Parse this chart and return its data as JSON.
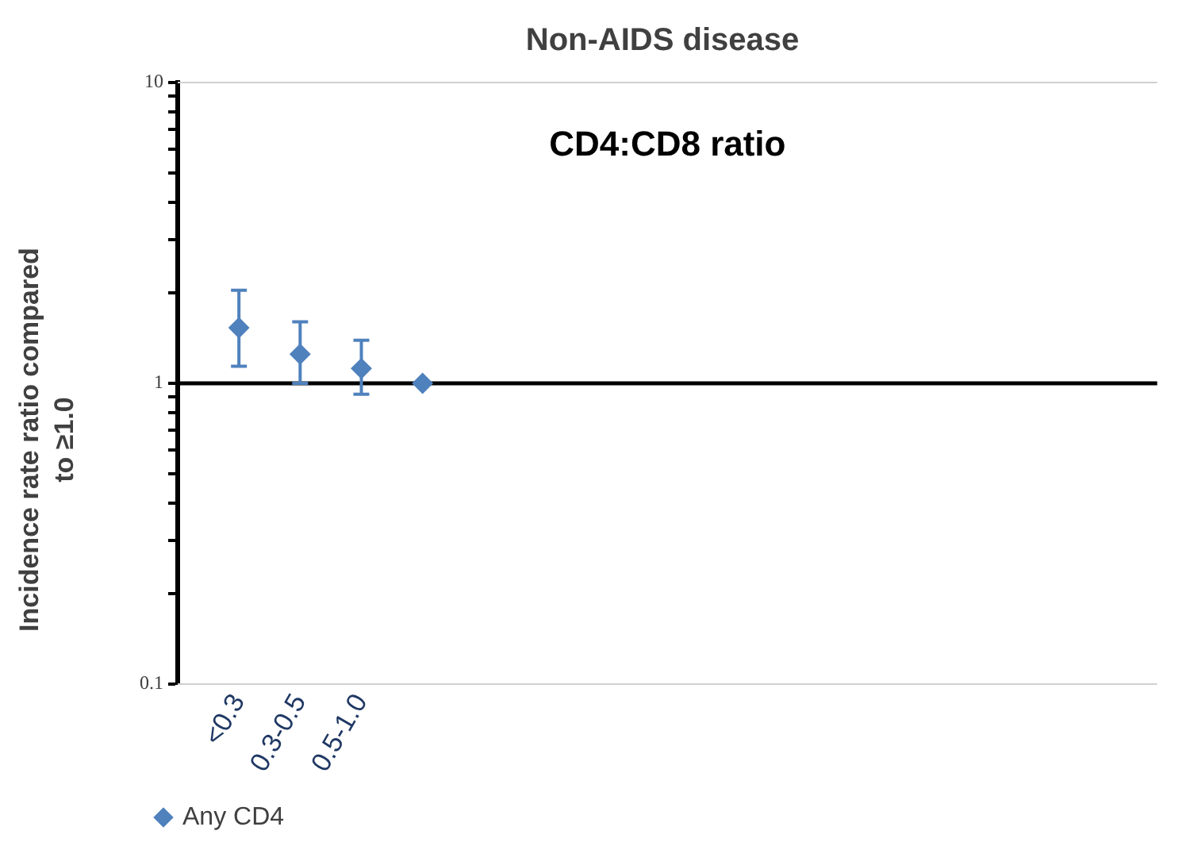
{
  "chart_data": {
    "type": "scatter",
    "title": "Non-AIDS disease",
    "ylabel": "Incidence rate ratio compared to ≥1.0",
    "annotations": [
      "CD4:CD8 ratio"
    ],
    "categories": [
      null,
      "<0.3",
      "0.3-0.5",
      "0.5-1.0",
      null,
      null,
      null,
      null,
      null,
      null,
      null,
      null,
      null,
      null,
      null,
      null,
      null
    ],
    "series": [
      {
        "name": "Any CD4",
        "color": "#4f81bd",
        "values": [
          null,
          1.53,
          1.25,
          1.12,
          1.0,
          null,
          null,
          null,
          null,
          null,
          null,
          null,
          null,
          null,
          null,
          null,
          null
        ],
        "errors": [
          null,
          [
            1.14,
            2.04
          ],
          [
            1.0,
            1.6
          ],
          [
            0.92,
            1.39
          ],
          null,
          null,
          null,
          null,
          null,
          null,
          null,
          null,
          null,
          null,
          null,
          null,
          null
        ]
      }
    ],
    "log": "y",
    "ylim": [
      0.1,
      10
    ],
    "yticks": [
      0.1,
      {
        "value": 0.2,
        "label": null
      },
      {
        "value": 0.3,
        "label": null
      },
      {
        "value": 0.4,
        "label": null
      },
      {
        "value": 0.5,
        "label": null
      },
      {
        "value": 0.6,
        "label": null
      },
      {
        "value": 0.7,
        "label": null
      },
      {
        "value": 0.8,
        "label": null
      },
      {
        "value": 0.9,
        "label": null
      },
      1,
      {
        "value": 2,
        "label": null
      },
      {
        "value": 3,
        "label": null
      },
      {
        "value": 4,
        "label": null
      },
      {
        "value": 5,
        "label": null
      },
      {
        "value": 6,
        "label": null
      },
      {
        "value": 7,
        "label": null
      },
      {
        "value": 8,
        "label": null
      },
      {
        "value": 9,
        "label": null
      },
      10
    ],
    "ref_lines": [
      {
        "axis": "y",
        "value": 1,
        "color": "#000000"
      }
    ],
    "legend": "bottom",
    "marker": "diamond"
  }
}
